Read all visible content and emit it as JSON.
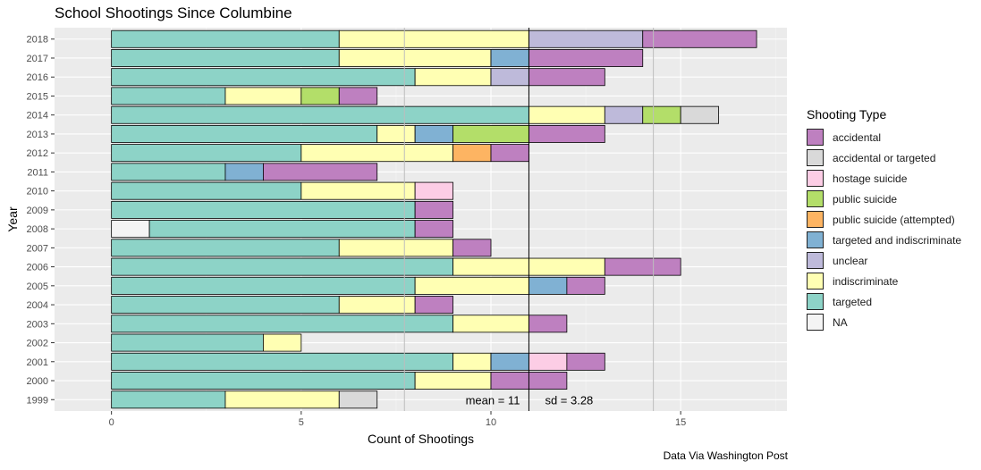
{
  "chart_data": {
    "type": "bar",
    "orientation": "horizontal",
    "stacked": true,
    "title": "School Shootings Since Columbine",
    "xlabel": "Count of Shootings",
    "ylabel": "Year",
    "caption": "Data Via Washington Post",
    "xlim": [
      -1.5,
      17.8
    ],
    "xticks": [
      0,
      5,
      10,
      15
    ],
    "legend_title": "Shooting Type",
    "legend_position": "right",
    "types": [
      {
        "key": "accidental",
        "label": "accidental",
        "color": "#BE80C0"
      },
      {
        "key": "accidental_or_targeted",
        "label": "accidental or targeted",
        "color": "#D9D9D9"
      },
      {
        "key": "hostage_suicide",
        "label": "hostage suicide",
        "color": "#FCCDE5"
      },
      {
        "key": "public_suicide",
        "label": "public suicide",
        "color": "#B3DE69"
      },
      {
        "key": "public_suicide_attempted",
        "label": "public suicide (attempted)",
        "color": "#FDB462"
      },
      {
        "key": "targeted_and_indiscriminate",
        "label": "targeted and indiscriminate",
        "color": "#80B1D3"
      },
      {
        "key": "unclear",
        "label": "unclear",
        "color": "#BEBADA"
      },
      {
        "key": "indiscriminate",
        "label": "indiscriminate",
        "color": "#FFFFB3"
      },
      {
        "key": "targeted",
        "label": "targeted",
        "color": "#8DD3C7"
      },
      {
        "key": "na",
        "label": "NA",
        "color": "#F4F4F4"
      }
    ],
    "years": [
      {
        "year": "2018",
        "segments": [
          {
            "type": "targeted",
            "value": 6
          },
          {
            "type": "indiscriminate",
            "value": 5
          },
          {
            "type": "unclear",
            "value": 3
          },
          {
            "type": "accidental",
            "value": 3
          }
        ]
      },
      {
        "year": "2017",
        "segments": [
          {
            "type": "targeted",
            "value": 6
          },
          {
            "type": "indiscriminate",
            "value": 4
          },
          {
            "type": "targeted_and_indiscriminate",
            "value": 1
          },
          {
            "type": "accidental",
            "value": 3
          }
        ]
      },
      {
        "year": "2016",
        "segments": [
          {
            "type": "targeted",
            "value": 8
          },
          {
            "type": "indiscriminate",
            "value": 2
          },
          {
            "type": "unclear",
            "value": 1
          },
          {
            "type": "accidental",
            "value": 2
          }
        ]
      },
      {
        "year": "2015",
        "segments": [
          {
            "type": "targeted",
            "value": 3
          },
          {
            "type": "indiscriminate",
            "value": 2
          },
          {
            "type": "public_suicide",
            "value": 1
          },
          {
            "type": "accidental",
            "value": 1
          }
        ]
      },
      {
        "year": "2014",
        "segments": [
          {
            "type": "targeted",
            "value": 11
          },
          {
            "type": "indiscriminate",
            "value": 2
          },
          {
            "type": "unclear",
            "value": 1
          },
          {
            "type": "public_suicide",
            "value": 1
          },
          {
            "type": "accidental_or_targeted",
            "value": 1
          }
        ]
      },
      {
        "year": "2013",
        "segments": [
          {
            "type": "targeted",
            "value": 7
          },
          {
            "type": "indiscriminate",
            "value": 1
          },
          {
            "type": "targeted_and_indiscriminate",
            "value": 1
          },
          {
            "type": "public_suicide",
            "value": 2
          },
          {
            "type": "accidental",
            "value": 2
          }
        ]
      },
      {
        "year": "2012",
        "segments": [
          {
            "type": "targeted",
            "value": 5
          },
          {
            "type": "indiscriminate",
            "value": 4
          },
          {
            "type": "public_suicide_attempted",
            "value": 1
          },
          {
            "type": "accidental",
            "value": 1
          }
        ]
      },
      {
        "year": "2011",
        "segments": [
          {
            "type": "targeted",
            "value": 3
          },
          {
            "type": "targeted_and_indiscriminate",
            "value": 1
          },
          {
            "type": "accidental",
            "value": 3
          }
        ]
      },
      {
        "year": "2010",
        "segments": [
          {
            "type": "targeted",
            "value": 5
          },
          {
            "type": "indiscriminate",
            "value": 3
          },
          {
            "type": "hostage_suicide",
            "value": 1
          }
        ]
      },
      {
        "year": "2009",
        "segments": [
          {
            "type": "targeted",
            "value": 8
          },
          {
            "type": "accidental",
            "value": 1
          }
        ]
      },
      {
        "year": "2008",
        "segments": [
          {
            "type": "na",
            "value": 1
          },
          {
            "type": "targeted",
            "value": 7
          },
          {
            "type": "accidental",
            "value": 1
          }
        ]
      },
      {
        "year": "2007",
        "segments": [
          {
            "type": "targeted",
            "value": 6
          },
          {
            "type": "indiscriminate",
            "value": 3
          },
          {
            "type": "accidental",
            "value": 1
          }
        ]
      },
      {
        "year": "2006",
        "segments": [
          {
            "type": "targeted",
            "value": 9
          },
          {
            "type": "indiscriminate",
            "value": 4
          },
          {
            "type": "accidental",
            "value": 2
          }
        ]
      },
      {
        "year": "2005",
        "segments": [
          {
            "type": "targeted",
            "value": 8
          },
          {
            "type": "indiscriminate",
            "value": 3
          },
          {
            "type": "targeted_and_indiscriminate",
            "value": 1
          },
          {
            "type": "accidental",
            "value": 1
          }
        ]
      },
      {
        "year": "2004",
        "segments": [
          {
            "type": "targeted",
            "value": 6
          },
          {
            "type": "indiscriminate",
            "value": 2
          },
          {
            "type": "accidental",
            "value": 1
          }
        ]
      },
      {
        "year": "2003",
        "segments": [
          {
            "type": "targeted",
            "value": 9
          },
          {
            "type": "indiscriminate",
            "value": 2
          },
          {
            "type": "accidental",
            "value": 1
          }
        ]
      },
      {
        "year": "2002",
        "segments": [
          {
            "type": "targeted",
            "value": 4
          },
          {
            "type": "indiscriminate",
            "value": 1
          }
        ]
      },
      {
        "year": "2001",
        "segments": [
          {
            "type": "targeted",
            "value": 9
          },
          {
            "type": "indiscriminate",
            "value": 1
          },
          {
            "type": "targeted_and_indiscriminate",
            "value": 1
          },
          {
            "type": "hostage_suicide",
            "value": 1
          },
          {
            "type": "accidental",
            "value": 1
          }
        ]
      },
      {
        "year": "2000",
        "segments": [
          {
            "type": "targeted",
            "value": 8
          },
          {
            "type": "indiscriminate",
            "value": 2
          },
          {
            "type": "accidental",
            "value": 2
          }
        ]
      },
      {
        "year": "1999",
        "segments": [
          {
            "type": "targeted",
            "value": 3
          },
          {
            "type": "indiscriminate",
            "value": 3
          },
          {
            "type": "accidental_or_targeted",
            "value": 1
          }
        ]
      }
    ],
    "reference_lines": {
      "mean": 11,
      "sd_lines": [
        7.72,
        14.28
      ]
    },
    "annotations": {
      "mean_label": "mean = 11",
      "sd_label": "sd = 3.28"
    }
  }
}
